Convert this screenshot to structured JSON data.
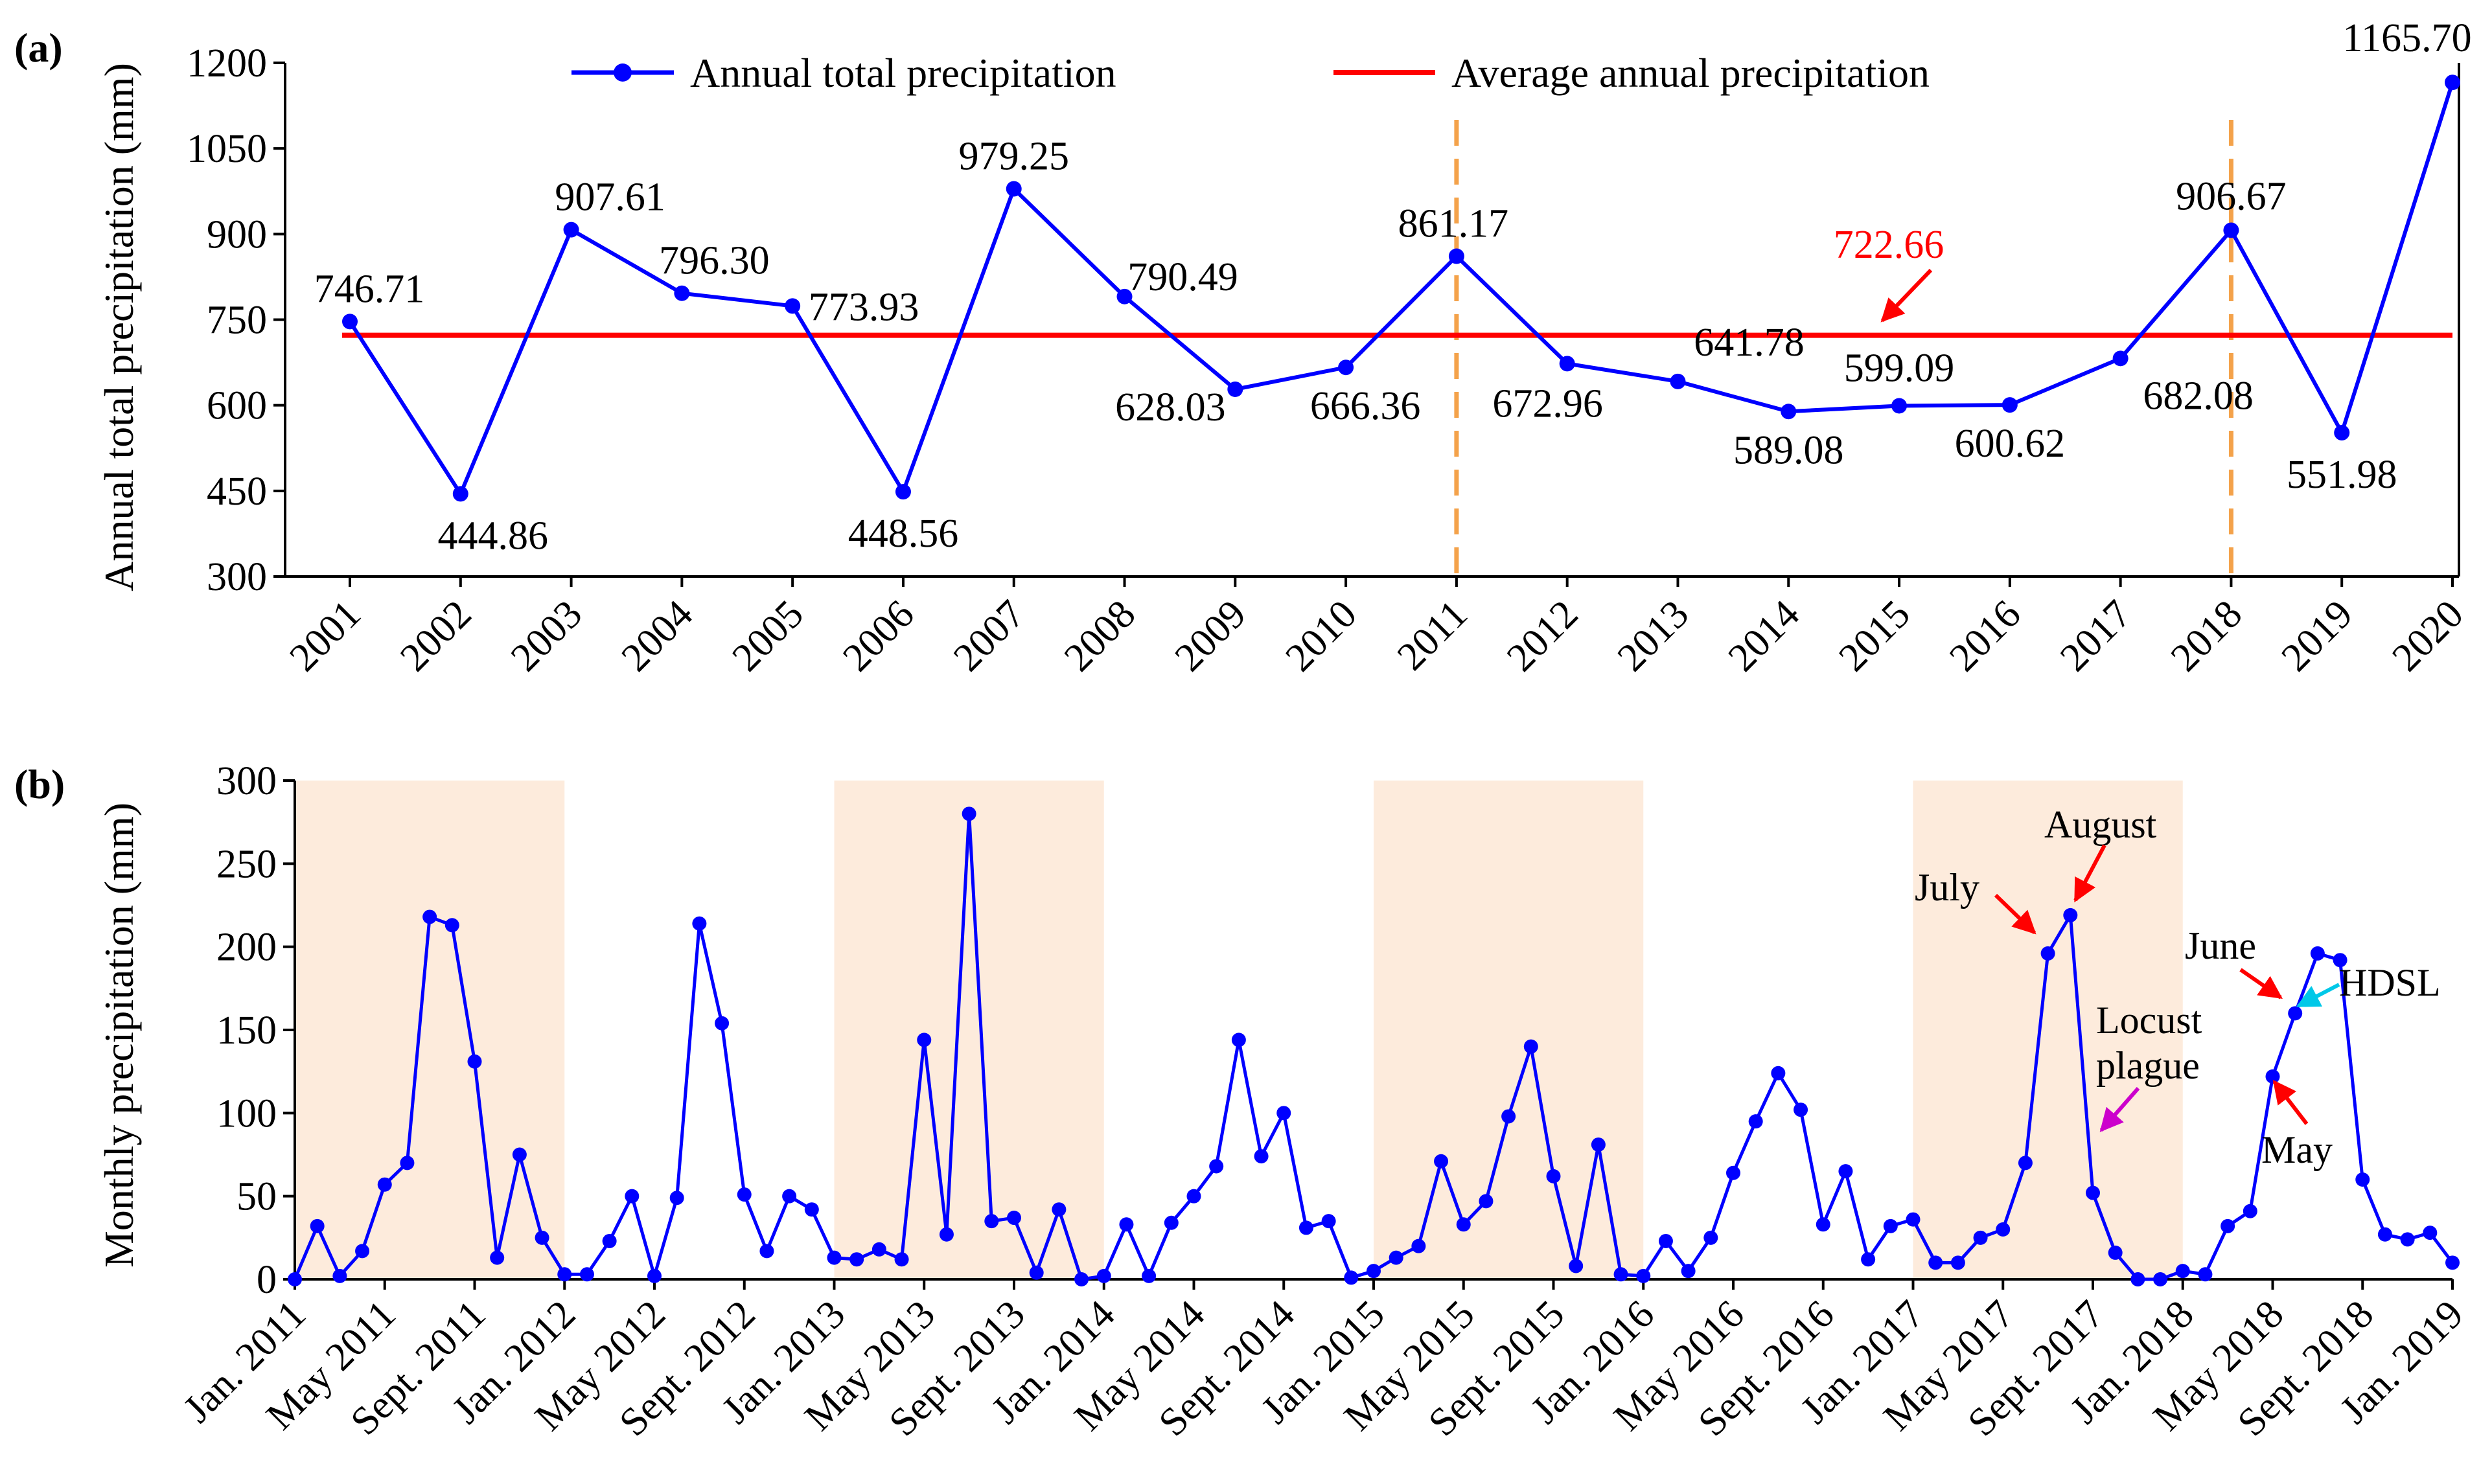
{
  "chart_data": [
    {
      "panel_label": "(a)",
      "type": "line",
      "ylabel": "Annual total precipitation (mm)",
      "ylim": [
        300,
        1200
      ],
      "yticks": [
        300,
        450,
        600,
        750,
        900,
        1050,
        1200
      ],
      "categories": [
        "2001",
        "2002",
        "2003",
        "2004",
        "2005",
        "2006",
        "2007",
        "2008",
        "2009",
        "2010",
        "2011",
        "2012",
        "2013",
        "2014",
        "2015",
        "2016",
        "2017",
        "2018",
        "2019",
        "2020"
      ],
      "series": [
        {
          "name": "Annual total precipitation",
          "color": "#0000ff",
          "values": [
            746.71,
            444.86,
            907.61,
            796.3,
            773.93,
            448.56,
            979.25,
            790.49,
            628.03,
            666.36,
            861.17,
            672.96,
            641.78,
            589.08,
            599.09,
            600.62,
            682.08,
            906.67,
            551.98,
            1165.7
          ],
          "labels": [
            "746.71",
            "444.86",
            "907.61",
            "796.30",
            "773.93",
            "448.56",
            "979.25",
            "790.49",
            "628.03",
            "666.36",
            "861.17",
            "672.96",
            "641.78",
            "589.08",
            "599.09",
            "600.62",
            "682.08",
            "906.67",
            "551.98",
            "1165.70"
          ]
        },
        {
          "name": "Average annual precipitation",
          "color": "#ff0000",
          "value": 722.66,
          "label": "722.66"
        }
      ],
      "vertical_markers": [
        "2011",
        "2018"
      ],
      "marker_color": "#f4a24a",
      "legend_position": "top"
    },
    {
      "panel_label": "(b)",
      "type": "line",
      "ylabel": "Monthly precipitation (mm)",
      "ylim": [
        0,
        300
      ],
      "yticks": [
        0,
        50,
        100,
        150,
        200,
        250,
        300
      ],
      "x_start": "Jan. 2011",
      "x_end": "Jan. 2019",
      "xtick_labels": [
        "Jan. 2011",
        "May 2011",
        "Sept. 2011",
        "Jan. 2012",
        "May 2012",
        "Sept. 2012",
        "Jan. 2013",
        "May 2013",
        "Sept. 2013",
        "Jan. 2014",
        "May 2014",
        "Sept. 2014",
        "Jan. 2015",
        "May 2015",
        "Sept. 2015",
        "Jan. 2016",
        "May 2016",
        "Sept. 2016",
        "Jan. 2017",
        "May 2017",
        "Sept. 2017",
        "Jan. 2018",
        "May 2018",
        "Sept. 2018",
        "Jan. 2019"
      ],
      "series": [
        {
          "color": "#0000ff",
          "values": [
            0,
            32,
            2,
            17,
            57,
            70,
            218,
            213,
            131,
            13,
            75,
            25,
            3,
            3,
            23,
            50,
            2,
            49,
            214,
            154,
            51,
            17,
            50,
            42,
            13,
            12,
            18,
            12,
            144,
            27,
            280,
            35,
            37,
            4,
            42,
            0,
            2,
            33,
            2,
            34,
            50,
            68,
            144,
            74,
            100,
            31,
            35,
            1,
            5,
            13,
            20,
            71,
            33,
            47,
            98,
            140,
            62,
            8,
            81,
            3,
            2,
            23,
            5,
            25,
            64,
            95,
            124,
            102,
            33,
            65,
            12,
            32,
            36,
            10,
            10,
            25,
            30,
            70,
            196,
            219,
            52,
            16,
            0,
            0,
            5,
            3,
            32,
            41,
            122,
            160,
            196,
            192,
            60,
            27,
            24,
            28,
            10
          ]
        }
      ],
      "shaded_periods": [
        [
          "Jan. 2011",
          "Jan. 2012"
        ],
        [
          "Jan. 2013",
          "Jan. 2014"
        ],
        [
          "Jan. 2015",
          "Jan. 2016"
        ],
        [
          "Jan. 2017",
          "Jan. 2018"
        ]
      ],
      "shade_color": "#fdebdc",
      "annotations": [
        {
          "text": "July",
          "color": "#ff0000"
        },
        {
          "text": "August",
          "color": "#ff0000"
        },
        {
          "text": "Locust",
          "text2": "plague",
          "color": "#cc00cc"
        },
        {
          "text": "June",
          "color": "#ff0000"
        },
        {
          "text": "HDSL",
          "color": "#00c8e8"
        },
        {
          "text": "May",
          "color": "#ff0000"
        }
      ]
    }
  ]
}
